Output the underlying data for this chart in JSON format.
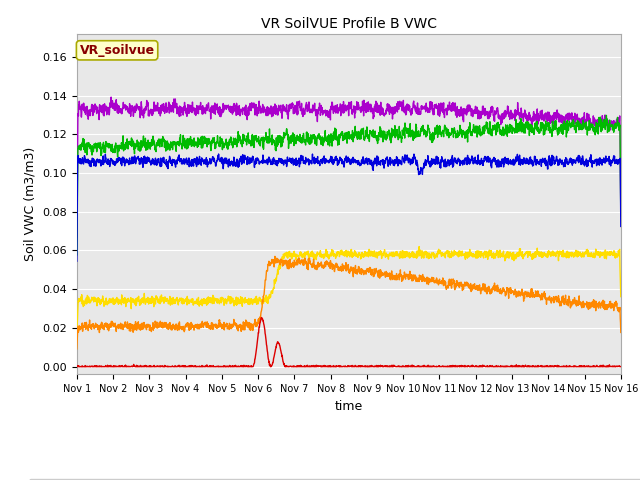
{
  "title": "VR SoilVUE Profile B VWC",
  "ylabel": "Soil VWC (m3/m3)",
  "xlabel": "time",
  "annotation_text": "VR_soilvue",
  "annotation_bg": "#ffffcc",
  "annotation_fg": "#880000",
  "xlim_days": [
    0,
    15
  ],
  "ylim": [
    -0.004,
    0.172
  ],
  "yticks": [
    0.0,
    0.02,
    0.04,
    0.06,
    0.08,
    0.1,
    0.12,
    0.14,
    0.16
  ],
  "xtick_labels": [
    "Nov 1",
    "Nov 2",
    "Nov 3",
    "Nov 4",
    "Nov 5",
    "Nov 6",
    "Nov 7",
    "Nov 8",
    "Nov 9",
    "Nov 10",
    "Nov 11",
    "Nov 12",
    "Nov 13",
    "Nov 14",
    "Nov 15",
    "Nov 16"
  ],
  "series": {
    "B-05_VWC": {
      "color": "#dd0000",
      "lw": 1.0
    },
    "B-10_VWC": {
      "color": "#ff8800",
      "lw": 1.0
    },
    "B-20_VWC": {
      "color": "#ffdd00",
      "lw": 1.0
    },
    "B-30_VWC": {
      "color": "#00bb00",
      "lw": 1.0
    },
    "B-40_VWC": {
      "color": "#0000dd",
      "lw": 1.0
    },
    "B-50_VWC": {
      "color": "#aa00cc",
      "lw": 1.0
    }
  },
  "bg_color": "#e8e8e8",
  "grid_color": "#ffffff",
  "fig_bg": "#ffffff"
}
